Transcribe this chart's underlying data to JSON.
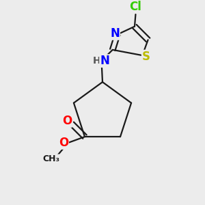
{
  "bg_color": "#ececec",
  "bond_color": "#1a1a1a",
  "bond_width": 1.6,
  "atom_colors": {
    "N": "#0000ff",
    "S": "#bbbb00",
    "O": "#ff0000",
    "Cl": "#33cc00",
    "H": "#555555",
    "C": "#1a1a1a"
  },
  "font_size": 12
}
